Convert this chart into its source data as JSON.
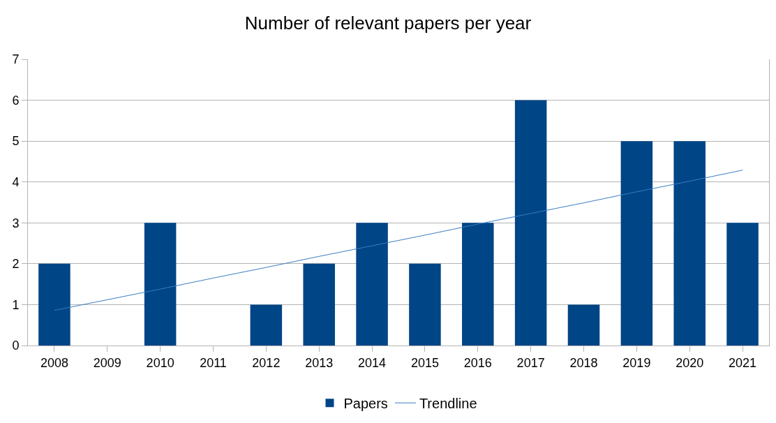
{
  "chart_data": {
    "type": "bar",
    "title": "Number of relevant papers per year",
    "categories": [
      "2008",
      "2009",
      "2010",
      "2011",
      "2012",
      "2013",
      "2014",
      "2015",
      "2016",
      "2017",
      "2018",
      "2019",
      "2020",
      "2021"
    ],
    "series": [
      {
        "name": "Papers",
        "color": "#004586",
        "values": [
          2,
          0,
          3,
          0,
          1,
          2,
          3,
          2,
          3,
          6,
          1,
          5,
          5,
          3
        ]
      },
      {
        "name": "Trendline",
        "type": "line",
        "color": "#3a7cc4",
        "values": [
          0.86,
          1.12,
          1.38,
          1.65,
          1.91,
          2.18,
          2.44,
          2.7,
          2.97,
          3.23,
          3.49,
          3.76,
          4.02,
          4.29
        ]
      }
    ],
    "ylim": [
      0,
      7
    ],
    "yticks": [
      0,
      1,
      2,
      3,
      4,
      5,
      6,
      7
    ],
    "grid": "y",
    "legend": "bottom",
    "marker": "none"
  }
}
